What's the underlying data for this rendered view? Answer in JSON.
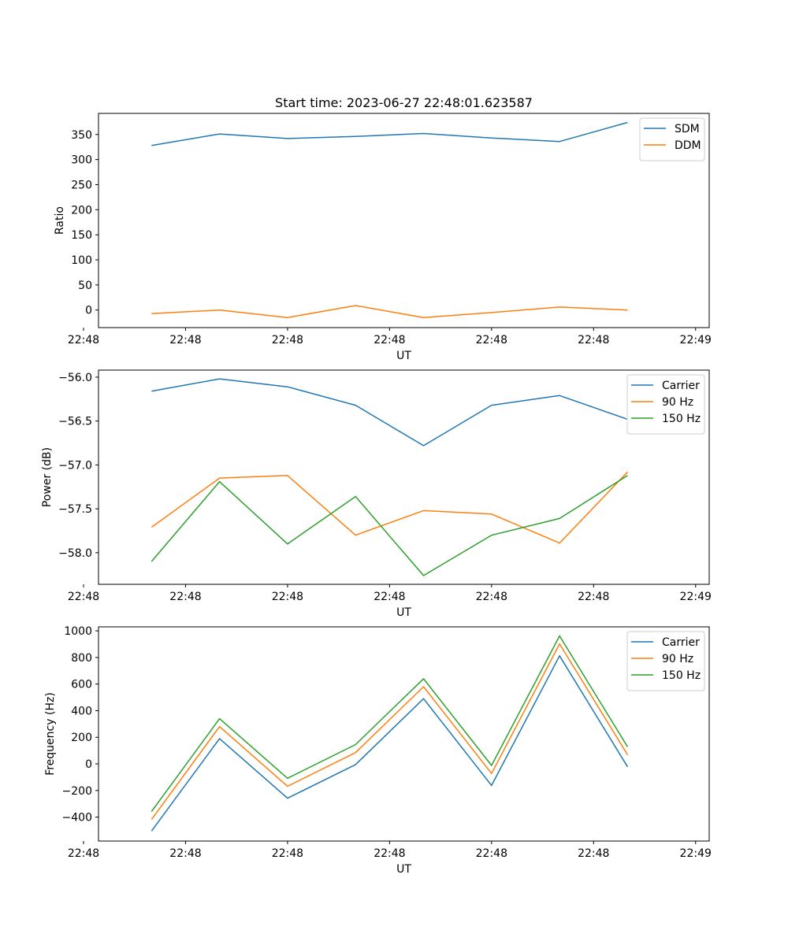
{
  "colors": {
    "blue": "#1f77b4",
    "orange": "#ff7f0e",
    "green": "#2ca02c"
  },
  "chart_data": [
    {
      "type": "line",
      "title": "Start time: 2023-06-27 22:48:01.623587",
      "xlabel": "UT",
      "ylabel": "Ratio",
      "x": [
        1,
        2,
        3,
        4,
        5,
        6,
        7,
        8
      ],
      "xlim": [
        0.22,
        9.2
      ],
      "x_ticks": [
        {
          "value": 0,
          "label": "22:48"
        },
        {
          "value": 1.5,
          "label": "22:48"
        },
        {
          "value": 3,
          "label": "22:48"
        },
        {
          "value": 4.5,
          "label": "22:48"
        },
        {
          "value": 6,
          "label": "22:48"
        },
        {
          "value": 7.5,
          "label": "22:48"
        },
        {
          "value": 9,
          "label": "22:49"
        }
      ],
      "ylim": [
        -35,
        392
      ],
      "y_ticks": [
        {
          "value": 0,
          "label": "0"
        },
        {
          "value": 50,
          "label": "50"
        },
        {
          "value": 100,
          "label": "100"
        },
        {
          "value": 150,
          "label": "150"
        },
        {
          "value": 200,
          "label": "200"
        },
        {
          "value": 250,
          "label": "250"
        },
        {
          "value": 300,
          "label": "300"
        },
        {
          "value": 350,
          "label": "350"
        }
      ],
      "legend": "top-right",
      "series": [
        {
          "name": "SDM",
          "color": "#1f77b4",
          "values": [
            328,
            351,
            342,
            346,
            352,
            343,
            336,
            374
          ]
        },
        {
          "name": "DDM",
          "color": "#ff7f0e",
          "values": [
            -7,
            0,
            -15,
            9,
            -15,
            -5,
            6,
            0
          ]
        }
      ]
    },
    {
      "type": "line",
      "title": "",
      "xlabel": "UT",
      "ylabel": "Power (dB)",
      "x": [
        1,
        2,
        3,
        4,
        5,
        6,
        7,
        8
      ],
      "xlim": [
        0.22,
        9.2
      ],
      "x_ticks": [
        {
          "value": 0,
          "label": "22:48"
        },
        {
          "value": 1.5,
          "label": "22:48"
        },
        {
          "value": 3,
          "label": "22:48"
        },
        {
          "value": 4.5,
          "label": "22:48"
        },
        {
          "value": 6,
          "label": "22:48"
        },
        {
          "value": 7.5,
          "label": "22:48"
        },
        {
          "value": 9,
          "label": "22:49"
        }
      ],
      "ylim": [
        -58.36,
        -55.92
      ],
      "y_ticks": [
        {
          "value": -58.0,
          "label": "−58.0"
        },
        {
          "value": -57.5,
          "label": "−57.5"
        },
        {
          "value": -57.0,
          "label": "−57.0"
        },
        {
          "value": -56.5,
          "label": "−56.5"
        },
        {
          "value": -56.0,
          "label": "−56.0"
        }
      ],
      "legend": "top-right",
      "series": [
        {
          "name": "Carrier",
          "color": "#1f77b4",
          "values": [
            -56.16,
            -56.02,
            -56.11,
            -56.32,
            -56.78,
            -56.32,
            -56.21,
            -56.48
          ]
        },
        {
          "name": "90 Hz",
          "color": "#ff7f0e",
          "values": [
            -57.71,
            -57.15,
            -57.12,
            -57.8,
            -57.52,
            -57.56,
            -57.89,
            -57.08
          ]
        },
        {
          "name": "150 Hz",
          "color": "#2ca02c",
          "values": [
            -58.1,
            -57.19,
            -57.9,
            -57.36,
            -58.26,
            -57.8,
            -57.61,
            -57.12
          ]
        }
      ]
    },
    {
      "type": "line",
      "title": "",
      "xlabel": "UT",
      "ylabel": "Frequency (Hz)",
      "x": [
        1,
        2,
        3,
        4,
        5,
        6,
        7,
        8
      ],
      "xlim": [
        0.22,
        9.2
      ],
      "x_ticks": [
        {
          "value": 0,
          "label": "22:48"
        },
        {
          "value": 1.5,
          "label": "22:48"
        },
        {
          "value": 3,
          "label": "22:48"
        },
        {
          "value": 4.5,
          "label": "22:48"
        },
        {
          "value": 6,
          "label": "22:48"
        },
        {
          "value": 7.5,
          "label": "22:48"
        },
        {
          "value": 9,
          "label": "22:49"
        }
      ],
      "ylim": [
        -580,
        1030
      ],
      "y_ticks": [
        {
          "value": -400,
          "label": "−400"
        },
        {
          "value": -200,
          "label": "−200"
        },
        {
          "value": 0,
          "label": "0"
        },
        {
          "value": 200,
          "label": "200"
        },
        {
          "value": 400,
          "label": "400"
        },
        {
          "value": 600,
          "label": "600"
        },
        {
          "value": 800,
          "label": "800"
        },
        {
          "value": 1000,
          "label": "1000"
        }
      ],
      "legend": "top-right",
      "series": [
        {
          "name": "Carrier",
          "color": "#1f77b4",
          "values": [
            -505,
            190,
            -258,
            -5,
            490,
            -162,
            812,
            -22
          ]
        },
        {
          "name": "90 Hz",
          "color": "#ff7f0e",
          "values": [
            -418,
            280,
            -168,
            85,
            580,
            -72,
            902,
            68
          ]
        },
        {
          "name": "150 Hz",
          "color": "#2ca02c",
          "values": [
            -358,
            340,
            -108,
            145,
            640,
            -12,
            962,
            128
          ]
        }
      ]
    }
  ]
}
